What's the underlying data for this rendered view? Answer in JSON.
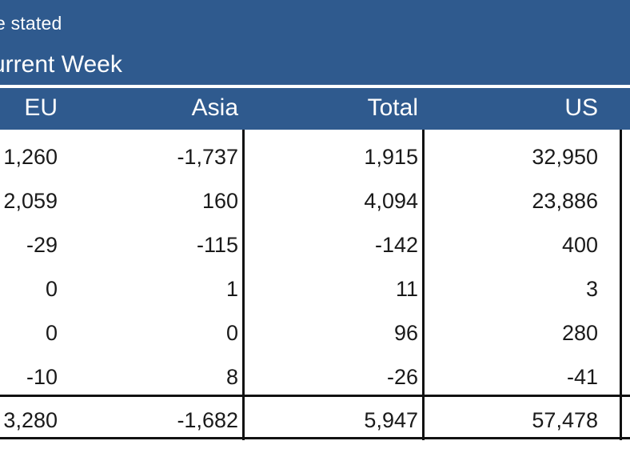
{
  "header": {
    "note": "e stated",
    "period": "urrent Week"
  },
  "columns": [
    "EU",
    "Asia",
    "Total",
    "US"
  ],
  "rows": [
    [
      "1,260",
      "-1,737",
      "1,915",
      "32,950"
    ],
    [
      "2,059",
      "160",
      "4,094",
      "23,886"
    ],
    [
      "-29",
      "-115",
      "-142",
      "400"
    ],
    [
      "0",
      "1",
      "11",
      "3"
    ],
    [
      "0",
      "0",
      "96",
      "280"
    ],
    [
      "-10",
      "8",
      "-26",
      "-41"
    ]
  ],
  "totals": [
    "3,280",
    "-1,682",
    "5,947",
    "57,478"
  ]
}
